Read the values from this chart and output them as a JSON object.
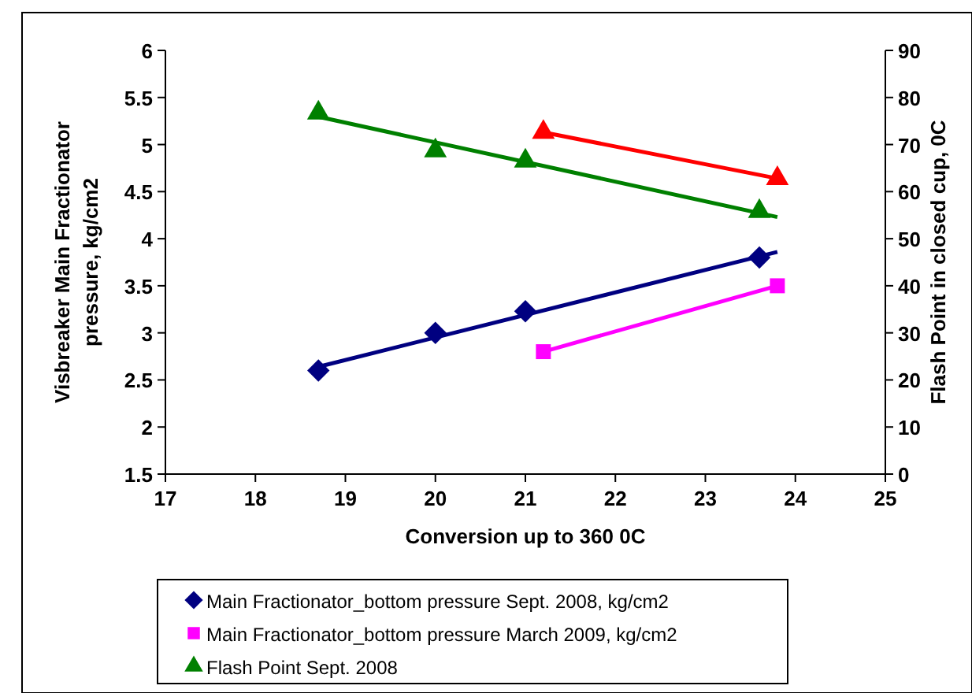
{
  "chart_data": {
    "type": "scatter",
    "xlabel": "Conversion up to 360 0C",
    "ylabel": "Visbreaker Main Fractionator pressure, kg/cm2",
    "y2label": "Flash Point in closed cup, 0C",
    "xlim": [
      17,
      25
    ],
    "xticks": [
      17,
      18,
      19,
      20,
      21,
      22,
      23,
      24,
      25
    ],
    "ylim": [
      1.5,
      6
    ],
    "yticks": [
      1.5,
      2,
      2.5,
      3,
      3.5,
      4,
      4.5,
      5,
      5.5,
      6
    ],
    "y2lim": [
      0,
      90
    ],
    "y2ticks": [
      0,
      10,
      20,
      30,
      40,
      50,
      60,
      70,
      80,
      90
    ],
    "grid": false,
    "legend": "bottom",
    "series": [
      {
        "type": "line",
        "color": "#000080",
        "marker": "none",
        "x": [
          18.7,
          23.8
        ],
        "values": [
          2.64,
          3.86
        ]
      },
      {
        "type": "line",
        "color": "#008000",
        "marker": "none",
        "axis": "y2",
        "x": [
          18.7,
          23.8
        ],
        "values": [
          75.9,
          54.6
        ]
      },
      {
        "name": "Main Fractionator_bottom pressure Sept. 2008, kg/cm2",
        "color": "#000080",
        "marker": "diamond",
        "x": [
          18.7,
          20,
          21,
          23.6
        ],
        "values": [
          2.6,
          3.0,
          3.23,
          3.8
        ]
      },
      {
        "type": "line",
        "name": "Main Fractionator_bottom pressure March 2009, kg/cm2",
        "color": "#ff00ff",
        "marker": "square",
        "x": [
          21.2,
          23.8
        ],
        "values": [
          2.8,
          3.5
        ]
      },
      {
        "name": "Flash Point Sept. 2008",
        "color": "#008000",
        "marker": "triangle",
        "axis": "y2",
        "x": [
          18.7,
          20,
          21,
          23.6
        ],
        "values": [
          76.7,
          68.7,
          66.5,
          55.8
        ]
      },
      {
        "type": "line",
        "color": "#ff0000",
        "marker": "triangle",
        "axis": "y2",
        "x": [
          21.2,
          23.8
        ],
        "values": [
          72.6,
          62.8
        ]
      }
    ]
  }
}
